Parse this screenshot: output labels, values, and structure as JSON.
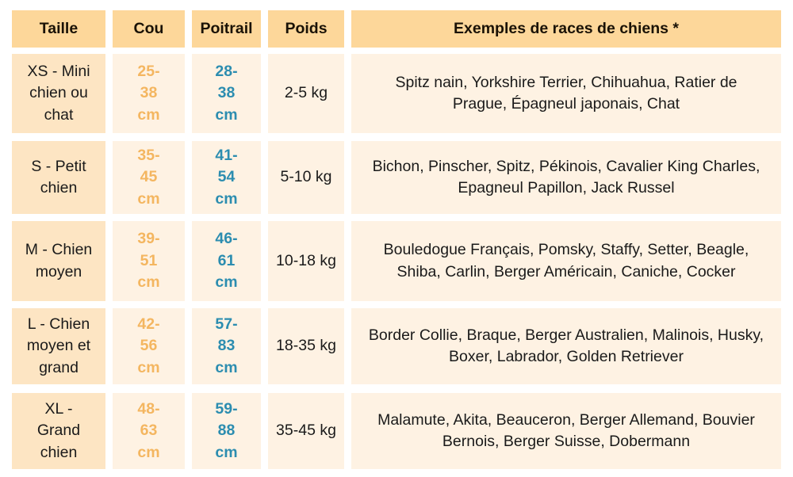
{
  "headers": [
    "Taille",
    "Cou",
    "Poitrail",
    "Poids",
    "Exemples de races de chiens *"
  ],
  "rows": [
    {
      "taille": "XS - Mini chien ou chat",
      "cou": "25-38 cm",
      "poitrail": "28-38 cm",
      "poids": "2-5 kg",
      "exemples": "Spitz nain, Yorkshire Terrier, Chihuahua, Ratier de Prague, Épagneul japonais, Chat"
    },
    {
      "taille": "S - Petit chien",
      "cou": "35-45 cm",
      "poitrail": "41-54 cm",
      "poids": "5-10 kg",
      "exemples": "Bichon, Pinscher, Spitz, Pékinois, Cavalier King Charles, Epagneul Papillon, Jack Russel"
    },
    {
      "taille": "M - Chien moyen",
      "cou": "39-51 cm",
      "poitrail": "46-61 cm",
      "poids": "10-18 kg",
      "exemples": "Bouledogue Français, Pomsky, Staffy, Setter, Beagle, Shiba, Carlin, Berger Américain, Caniche, Cocker"
    },
    {
      "taille": "L - Chien moyen et grand",
      "cou": "42-56 cm",
      "poitrail": "57-83 cm",
      "poids": "18-35 kg",
      "exemples": "Border Collie, Braque, Berger Australien, Malinois, Husky, Boxer, Labrador, Golden Retriever"
    },
    {
      "taille": "XL - Grand chien",
      "cou": "48-63 cm",
      "poitrail": "59-88 cm",
      "poids": "35-45 kg",
      "exemples": "Malamute, Akita, Beauceron, Berger Allemand, Bouvier Bernois, Berger Suisse, Dobermann"
    }
  ],
  "colors": {
    "header_bg": "#fdd79a",
    "size_col_bg": "#fde5c3",
    "cell_bg": "#fef2e3",
    "cou_text": "#f4b660",
    "poitrail_text": "#2c8db0"
  }
}
